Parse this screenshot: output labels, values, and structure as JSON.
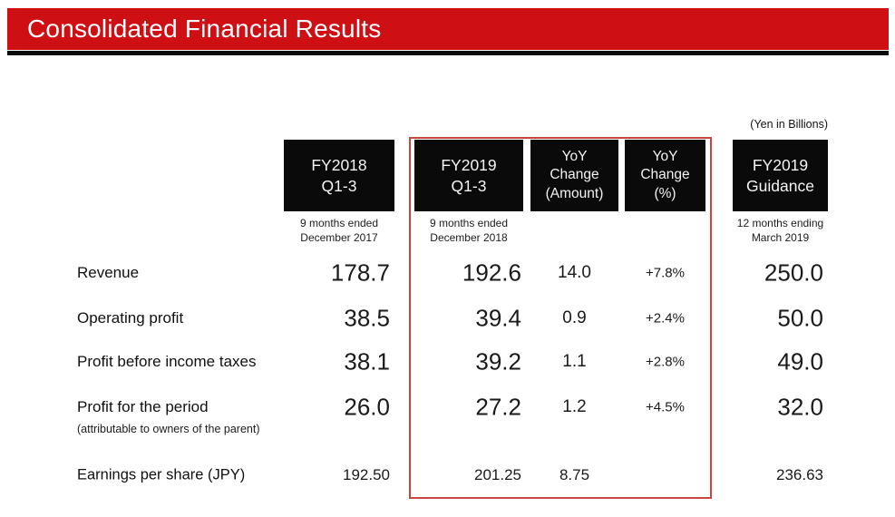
{
  "title": "Consolidated Financial Results",
  "unit_note": "(Yen in Billions)",
  "colors": {
    "accent_red": "#CE0F14",
    "highlight_border": "#C9463F",
    "header_box_bg": "#0A0A0A",
    "title_underline": "#0D0D0D"
  },
  "columns": [
    {
      "id": "fy2018_q13",
      "lines": [
        "FY2018",
        "Q1-3"
      ],
      "sublabel_lines": [
        "9 months ended",
        "December 2017"
      ]
    },
    {
      "id": "fy2019_q13",
      "lines": [
        "FY2019",
        "Q1-3"
      ],
      "sublabel_lines": [
        "9 months ended",
        "December 2018"
      ],
      "highlighted": true
    },
    {
      "id": "yoy_amount",
      "lines": [
        "YoY",
        "Change",
        "(Amount)"
      ]
    },
    {
      "id": "yoy_percent",
      "lines": [
        "YoY",
        "Change",
        "(%)"
      ]
    },
    {
      "id": "fy2019_guidance",
      "lines": [
        "FY2019",
        "Guidance"
      ],
      "sublabel_lines": [
        "12 months ending",
        "March 2019"
      ]
    }
  ],
  "rows": [
    {
      "label": "Revenue",
      "values": [
        "178.7",
        "192.6",
        "14.0",
        "+7.8%",
        "250.0"
      ]
    },
    {
      "label": "Operating profit",
      "values": [
        "38.5",
        "39.4",
        "0.9",
        "+2.4%",
        "50.0"
      ]
    },
    {
      "label": "Profit before income taxes",
      "values": [
        "38.1",
        "39.2",
        "1.1",
        "+2.8%",
        "49.0"
      ]
    },
    {
      "label": "Profit for the period",
      "sublabel": "(attributable to owners of the parent)",
      "values": [
        "26.0",
        "27.2",
        "1.2",
        "+4.5%",
        "32.0"
      ]
    },
    {
      "label": "Earnings per share (JPY)",
      "values": [
        "192.50",
        "201.25",
        "8.75",
        "",
        "236.63"
      ]
    }
  ]
}
